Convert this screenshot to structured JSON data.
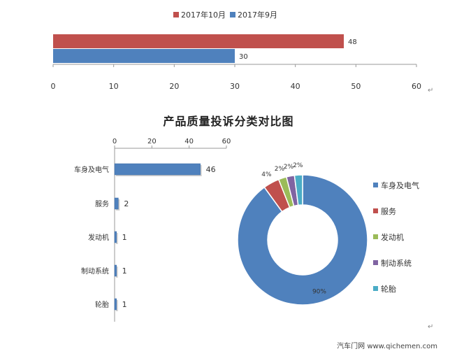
{
  "chart_data": [
    {
      "type": "bar",
      "orientation": "horizontal",
      "legend_position": "top",
      "categories": [
        ""
      ],
      "series": [
        {
          "name": "2017年10月",
          "color": "#C0504D",
          "values": [
            48
          ]
        },
        {
          "name": "2017年9月",
          "color": "#4F81BD",
          "values": [
            30
          ]
        }
      ],
      "xlim": [
        0,
        60
      ],
      "xticks": [
        0,
        10,
        20,
        30,
        40,
        50,
        60
      ],
      "grid": false
    },
    {
      "type": "bar",
      "orientation": "horizontal",
      "categories": [
        "车身及电气",
        "服务",
        "发动机",
        "制动系统",
        "轮胎"
      ],
      "values": [
        46,
        2,
        1,
        1,
        1
      ],
      "color": "#4F81BD",
      "xlim": [
        0,
        60
      ],
      "xticks": [
        0,
        20,
        40,
        60
      ],
      "xaxis_position": "top",
      "grid": false
    },
    {
      "type": "pie",
      "style": "donut",
      "legend_position": "right",
      "labels": [
        "车身及电气",
        "服务",
        "发动机",
        "制动系统",
        "轮胎"
      ],
      "values": [
        90,
        4,
        2,
        2,
        2
      ],
      "value_labels": [
        "90%",
        "4%",
        "2%",
        "2%",
        "2%"
      ],
      "colors": [
        "#4F81BD",
        "#C0504D",
        "#9BBB59",
        "#8064A2",
        "#4BACC6"
      ]
    }
  ],
  "section_title": "产品质量投诉分类对比图",
  "return_mark": "↵",
  "watermark": "汽车门网 www.qichemen.com"
}
